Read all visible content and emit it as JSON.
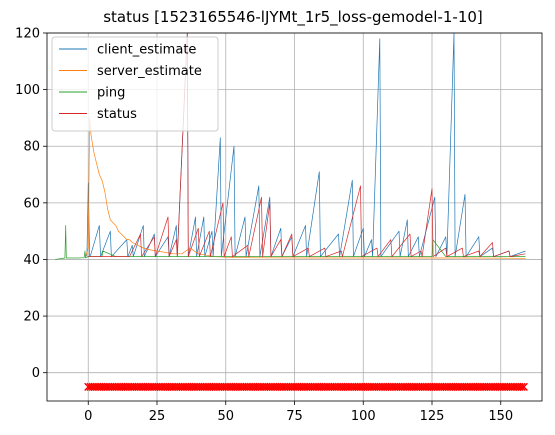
{
  "chart_data": {
    "type": "line",
    "title": "status [1523165546-lJYMt_1r5_loss-gemodel-1-10]",
    "xlabel": "",
    "ylabel": "",
    "xlim": [
      -15,
      165
    ],
    "ylim": [
      -10,
      120
    ],
    "grid": true,
    "legend_position": "top-left",
    "xticks": [
      0,
      25,
      50,
      75,
      100,
      125,
      150
    ],
    "yticks": [
      0,
      20,
      40,
      60,
      80,
      100,
      120
    ],
    "series": [
      {
        "name": "client_estimate",
        "color": "#1f77b4",
        "x": [
          -0.5,
          0,
          0.5,
          1,
          4,
          4.5,
          8,
          8.4,
          14,
          14.4,
          16,
          16.4,
          20,
          20.4,
          24,
          24.4,
          29,
          29.4,
          32,
          32.4,
          36,
          36.4,
          39,
          39.4,
          42,
          42.4,
          45,
          45.4,
          48,
          48.4,
          53,
          53.4,
          57,
          57.4,
          62,
          62.4,
          66,
          66.4,
          70,
          70.4,
          74,
          74.4,
          79,
          79.4,
          84,
          84.4,
          91,
          91.4,
          96,
          96.4,
          100,
          100.4,
          103,
          103.4,
          106,
          106.4,
          113,
          113.4,
          116,
          116.4,
          120,
          120.4,
          126,
          126.4,
          130,
          130.4,
          133,
          133.4,
          137,
          137.4,
          142,
          142.4,
          147,
          147.4,
          153,
          153.4,
          159
        ],
        "y": [
          41,
          67,
          41,
          42,
          52,
          41,
          50,
          41,
          47,
          41,
          45,
          41,
          52,
          41,
          49,
          41,
          48,
          41,
          52,
          41,
          120,
          41,
          55,
          41,
          55,
          41,
          50,
          41,
          83,
          41,
          80,
          41,
          55,
          41,
          66,
          41,
          62,
          41,
          51,
          41,
          48,
          41,
          52,
          41,
          71,
          41,
          49,
          41,
          68,
          41,
          51,
          41,
          47,
          41,
          118,
          41,
          50,
          41,
          54,
          41,
          48,
          41,
          62,
          41,
          48,
          41,
          120,
          41,
          63,
          41,
          48,
          41,
          44,
          41,
          43,
          41,
          43
        ]
      },
      {
        "name": "server_estimate",
        "color": "#ff7f0e",
        "x": [
          -1,
          0,
          0.5,
          1,
          2,
          3,
          4,
          5,
          6,
          7,
          8,
          9,
          10,
          11,
          12,
          13,
          14,
          15,
          16,
          18,
          20,
          22,
          25,
          28,
          31,
          34,
          37,
          40,
          43,
          46,
          50,
          60,
          80,
          100,
          120,
          140,
          159
        ],
        "y": [
          41,
          44,
          90,
          84,
          78,
          74,
          70,
          68,
          64,
          58,
          54,
          53,
          52,
          50,
          49,
          48,
          47,
          47,
          46,
          45,
          44,
          43.5,
          43,
          42.5,
          42,
          42,
          44,
          42,
          41.5,
          41,
          40.8,
          40.6,
          40.5,
          40.5,
          40.5,
          40.5,
          40.4
        ]
      },
      {
        "name": "ping",
        "color": "#2ca02c",
        "x": [
          -12,
          -10,
          -8.5,
          -8.2,
          -8,
          -6,
          -4,
          -2,
          -1.5,
          -1.2,
          -1,
          0,
          2,
          5,
          5.3,
          10,
          20,
          30,
          40,
          50,
          60,
          70,
          80,
          90,
          100,
          110,
          120,
          125,
          125.3,
          130,
          140,
          150,
          159
        ],
        "y": [
          40,
          40.3,
          40.5,
          52,
          40.5,
          40.5,
          40.5,
          40.6,
          40.6,
          43,
          40.6,
          41,
          41,
          41,
          43,
          41,
          41,
          41,
          41,
          41,
          41,
          41,
          41,
          41,
          41,
          41,
          41,
          41,
          47,
          41,
          41,
          41,
          41
        ]
      },
      {
        "name": "status",
        "color": "#d62728",
        "x": [
          0,
          5,
          10,
          15,
          19,
          19.4,
          24,
          24.4,
          29,
          29.4,
          32,
          32.4,
          36,
          36.4,
          40,
          40.4,
          44,
          44.4,
          49,
          49.4,
          52,
          52.4,
          58,
          58.4,
          63,
          63.4,
          66,
          66.4,
          70,
          70.4,
          74,
          74.4,
          80,
          80.4,
          86,
          86.4,
          92,
          92.4,
          99,
          99.4,
          105,
          105.4,
          110,
          110.4,
          117,
          117.4,
          121,
          121.4,
          125,
          125.4,
          130,
          130.4,
          136,
          136.4,
          142,
          142.4,
          147,
          147.4,
          153,
          153.4,
          159
        ],
        "y": [
          41,
          41,
          41,
          41,
          49,
          41,
          48,
          41,
          55,
          41,
          47,
          41,
          120,
          41,
          51,
          41,
          50,
          41,
          60,
          41,
          48,
          41,
          45,
          41,
          62,
          41,
          60,
          41,
          47,
          41,
          49,
          41,
          44,
          41,
          44,
          41,
          43,
          41,
          66,
          41,
          44,
          41,
          47,
          41,
          49,
          41,
          43,
          41,
          65,
          41,
          44,
          41,
          44,
          41,
          43,
          41,
          46,
          41,
          43,
          41,
          42
        ]
      }
    ],
    "markers": {
      "color": "#ff0000",
      "symbol": "x",
      "y": -5,
      "x_start": 0,
      "x_end": 159
    }
  }
}
